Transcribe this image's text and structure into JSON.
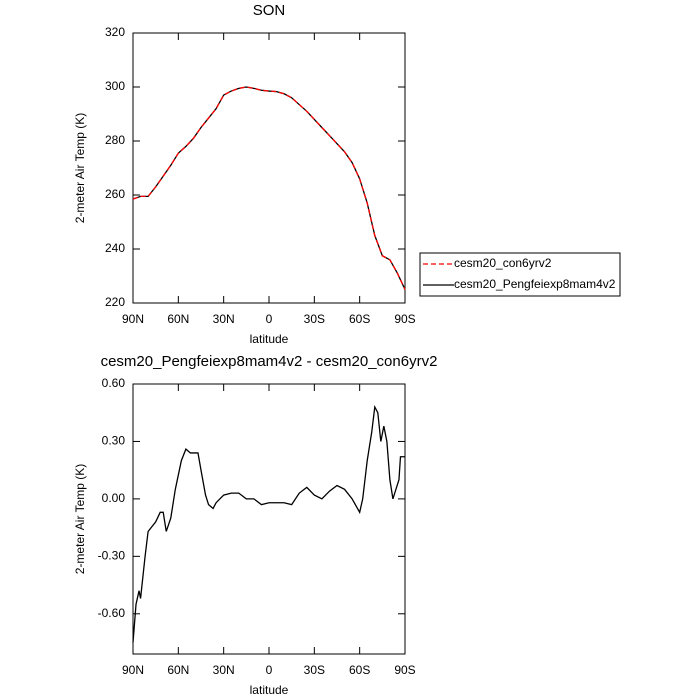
{
  "chart_data": [
    {
      "type": "line",
      "title": "SON",
      "xlabel": "latitude",
      "ylabel": "2-meter Air Temp (K)",
      "x": [
        90,
        85,
        80,
        75,
        70,
        65,
        60,
        55,
        50,
        45,
        40,
        35,
        30,
        25,
        20,
        15,
        10,
        5,
        0,
        -5,
        -10,
        -15,
        -20,
        -25,
        -30,
        -35,
        -40,
        -45,
        -50,
        -55,
        -60,
        -65,
        -70,
        -75,
        -80,
        -85,
        -90
      ],
      "series": [
        {
          "name": "cesm20_con6yrv2",
          "color": "#ff0000",
          "linestyle": "dashed",
          "values": [
            258.5,
            259.5,
            259.5,
            263,
            267,
            271,
            275.5,
            278,
            281,
            285,
            288.5,
            292,
            297,
            298.5,
            299.5,
            300,
            299.5,
            298.8,
            298.5,
            298.3,
            297.5,
            296,
            293.5,
            291,
            288,
            285,
            282,
            279,
            276,
            272,
            266,
            257,
            245,
            237.5,
            236,
            231,
            225
          ]
        },
        {
          "name": "cesm20_Pengfeiexp8mam4v2",
          "color": "#000000",
          "linestyle": "solid",
          "values": [
            258.5,
            259.5,
            259.5,
            263,
            267,
            271,
            275.5,
            278,
            281,
            285,
            288.5,
            292,
            297,
            298.5,
            299.5,
            300,
            299.5,
            298.8,
            298.5,
            298.3,
            297.5,
            296,
            293.5,
            291,
            288,
            285,
            282,
            279,
            276,
            272,
            266,
            257,
            245,
            237.5,
            236,
            231,
            225
          ]
        }
      ],
      "xlim": [
        90,
        -90
      ],
      "xticks": [
        {
          "value": 90,
          "label": "90N"
        },
        {
          "value": 60,
          "label": "60N"
        },
        {
          "value": 30,
          "label": "30N"
        },
        0,
        {
          "value": -30,
          "label": "30S"
        },
        {
          "value": -60,
          "label": "60S"
        },
        {
          "value": -90,
          "label": "90S"
        }
      ],
      "ylim": [
        220,
        320
      ],
      "yticks": [
        220,
        240,
        260,
        280,
        300,
        320
      ],
      "legend": "right"
    },
    {
      "type": "line",
      "title": "cesm20_Pengfeiexp8mam4v2 - cesm20_con6yrv2",
      "xlabel": "latitude",
      "ylabel": "2-meter Air Temp (K)",
      "x": [
        90,
        88,
        86,
        85,
        82,
        80,
        78,
        75,
        72,
        70,
        68,
        65,
        62,
        58,
        55,
        52,
        47,
        45,
        42,
        40,
        37,
        35,
        30,
        25,
        20,
        15,
        10,
        5,
        0,
        -5,
        -10,
        -15,
        -20,
        -25,
        -30,
        -35,
        -40,
        -45,
        -50,
        -55,
        -60,
        -62,
        -65,
        -68,
        -70,
        -72,
        -74,
        -76,
        -78,
        -80,
        -82,
        -84,
        -86,
        -87,
        -90
      ],
      "series": [
        {
          "color": "#000000",
          "linestyle": "solid",
          "values": [
            -0.75,
            -0.55,
            -0.48,
            -0.52,
            -0.3,
            -0.17,
            -0.15,
            -0.12,
            -0.07,
            -0.07,
            -0.17,
            -0.1,
            0.05,
            0.2,
            0.26,
            0.24,
            0.24,
            0.15,
            0.02,
            -0.03,
            -0.05,
            -0.02,
            0.02,
            0.03,
            0.03,
            0.0,
            0.0,
            -0.03,
            -0.02,
            -0.02,
            -0.02,
            -0.03,
            0.03,
            0.06,
            0.02,
            0.0,
            0.04,
            0.07,
            0.05,
            0.0,
            -0.07,
            0.0,
            0.2,
            0.35,
            0.48,
            0.45,
            0.3,
            0.38,
            0.3,
            0.1,
            0.0,
            0.05,
            0.1,
            0.22,
            0.22
          ]
        }
      ],
      "xlim": [
        90,
        -90
      ],
      "xticks": [
        {
          "value": 90,
          "label": "90N"
        },
        {
          "value": 60,
          "label": "60N"
        },
        {
          "value": 30,
          "label": "30N"
        },
        0,
        {
          "value": -30,
          "label": "30S"
        },
        {
          "value": -60,
          "label": "60S"
        },
        {
          "value": -90,
          "label": "90S"
        }
      ],
      "ylim": [
        -0.81,
        0.6
      ],
      "yticks": [
        {
          "value": -0.6,
          "label": "-0.60"
        },
        {
          "value": -0.3,
          "label": "-0.30"
        },
        {
          "value": 0,
          "label": "0.00"
        },
        {
          "value": 0.3,
          "label": "0.30"
        },
        {
          "value": 0.6,
          "label": "0.60"
        }
      ]
    }
  ]
}
